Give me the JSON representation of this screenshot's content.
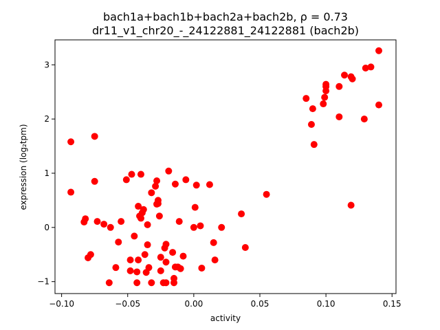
{
  "chart_data": {
    "type": "scatter",
    "title_line1": "bach1a+bach1b+bach2a+bach2b, ρ = 0.73",
    "title_line2": "dr11_v1_chr20_-_24122881_24122881 (bach2b)",
    "xlabel": "activity",
    "ylabel": "expression (log₂tpm)",
    "xlim": [
      -0.105,
      0.153
    ],
    "ylim": [
      -1.22,
      3.46
    ],
    "x_ticks": [
      -0.1,
      -0.05,
      0.0,
      0.05,
      0.1,
      0.15
    ],
    "x_tick_labels": [
      "−0.10",
      "−0.05",
      "0.00",
      "0.05",
      "0.10",
      "0.15"
    ],
    "y_ticks": [
      -1,
      0,
      1,
      2,
      3
    ],
    "y_tick_labels": [
      "−1",
      "0",
      "1",
      "2",
      "3"
    ],
    "grid": false,
    "marker_color": "#ff0000",
    "points": [
      {
        "x": -0.093,
        "y": 1.58
      },
      {
        "x": -0.093,
        "y": 0.65
      },
      {
        "x": -0.075,
        "y": 1.68
      },
      {
        "x": -0.075,
        "y": 0.85
      },
      {
        "x": -0.083,
        "y": 0.1
      },
      {
        "x": -0.082,
        "y": 0.16
      },
      {
        "x": -0.08,
        "y": -0.56
      },
      {
        "x": -0.078,
        "y": -0.5
      },
      {
        "x": -0.073,
        "y": 0.11
      },
      {
        "x": -0.068,
        "y": 0.06
      },
      {
        "x": -0.063,
        "y": 0.0
      },
      {
        "x": -0.064,
        "y": -1.02
      },
      {
        "x": -0.059,
        "y": -0.74
      },
      {
        "x": -0.057,
        "y": -0.27
      },
      {
        "x": -0.055,
        "y": 0.11
      },
      {
        "x": -0.051,
        "y": 0.88
      },
      {
        "x": -0.047,
        "y": 0.98
      },
      {
        "x": -0.048,
        "y": -0.8
      },
      {
        "x": -0.048,
        "y": -0.6
      },
      {
        "x": -0.045,
        "y": -0.16
      },
      {
        "x": -0.043,
        "y": -1.02
      },
      {
        "x": -0.043,
        "y": -0.82
      },
      {
        "x": -0.042,
        "y": 0.39
      },
      {
        "x": -0.042,
        "y": -0.6
      },
      {
        "x": -0.041,
        "y": 0.21
      },
      {
        "x": -0.04,
        "y": 0.98
      },
      {
        "x": -0.04,
        "y": 0.17
      },
      {
        "x": -0.039,
        "y": 0.27
      },
      {
        "x": -0.038,
        "y": 0.33
      },
      {
        "x": -0.037,
        "y": -0.5
      },
      {
        "x": -0.036,
        "y": -0.83
      },
      {
        "x": -0.035,
        "y": 0.05
      },
      {
        "x": -0.035,
        "y": -0.32
      },
      {
        "x": -0.034,
        "y": -0.74
      },
      {
        "x": -0.032,
        "y": 0.64
      },
      {
        "x": -0.032,
        "y": -1.02
      },
      {
        "x": -0.029,
        "y": 0.76
      },
      {
        "x": -0.028,
        "y": 0.86
      },
      {
        "x": -0.028,
        "y": 0.43
      },
      {
        "x": -0.027,
        "y": 0.5
      },
      {
        "x": -0.027,
        "y": 0.44
      },
      {
        "x": -0.026,
        "y": 0.21
      },
      {
        "x": -0.025,
        "y": -0.55
      },
      {
        "x": -0.025,
        "y": -0.8
      },
      {
        "x": -0.023,
        "y": -1.02
      },
      {
        "x": -0.022,
        "y": -0.38
      },
      {
        "x": -0.021,
        "y": -0.31
      },
      {
        "x": -0.021,
        "y": -0.64
      },
      {
        "x": -0.021,
        "y": -1.02
      },
      {
        "x": -0.019,
        "y": 1.04
      },
      {
        "x": -0.016,
        "y": -0.46
      },
      {
        "x": -0.015,
        "y": -1.02
      },
      {
        "x": -0.015,
        "y": -0.94
      },
      {
        "x": -0.014,
        "y": 0.8
      },
      {
        "x": -0.014,
        "y": -0.73
      },
      {
        "x": -0.012,
        "y": -0.73
      },
      {
        "x": -0.011,
        "y": 0.11
      },
      {
        "x": -0.01,
        "y": -0.76
      },
      {
        "x": -0.008,
        "y": -0.53
      },
      {
        "x": -0.006,
        "y": 0.88
      },
      {
        "x": 0.0,
        "y": 0.0
      },
      {
        "x": 0.001,
        "y": 0.37
      },
      {
        "x": 0.002,
        "y": 0.78
      },
      {
        "x": 0.005,
        "y": 0.03
      },
      {
        "x": 0.006,
        "y": -0.75
      },
      {
        "x": 0.012,
        "y": 0.79
      },
      {
        "x": 0.015,
        "y": -0.28
      },
      {
        "x": 0.016,
        "y": -0.6
      },
      {
        "x": 0.021,
        "y": 0.0
      },
      {
        "x": 0.036,
        "y": 0.25
      },
      {
        "x": 0.039,
        "y": -0.37
      },
      {
        "x": 0.055,
        "y": 0.61
      },
      {
        "x": 0.085,
        "y": 2.38
      },
      {
        "x": 0.089,
        "y": 1.9
      },
      {
        "x": 0.09,
        "y": 2.19
      },
      {
        "x": 0.091,
        "y": 1.53
      },
      {
        "x": 0.098,
        "y": 2.28
      },
      {
        "x": 0.099,
        "y": 2.4
      },
      {
        "x": 0.1,
        "y": 2.6
      },
      {
        "x": 0.1,
        "y": 2.64
      },
      {
        "x": 0.1,
        "y": 2.52
      },
      {
        "x": 0.11,
        "y": 2.6
      },
      {
        "x": 0.11,
        "y": 2.04
      },
      {
        "x": 0.114,
        "y": 2.81
      },
      {
        "x": 0.119,
        "y": 2.78
      },
      {
        "x": 0.119,
        "y": 0.41
      },
      {
        "x": 0.12,
        "y": 2.74
      },
      {
        "x": 0.129,
        "y": 2.0
      },
      {
        "x": 0.13,
        "y": 2.94
      },
      {
        "x": 0.134,
        "y": 2.96
      },
      {
        "x": 0.14,
        "y": 3.26
      },
      {
        "x": 0.14,
        "y": 2.26
      }
    ]
  }
}
